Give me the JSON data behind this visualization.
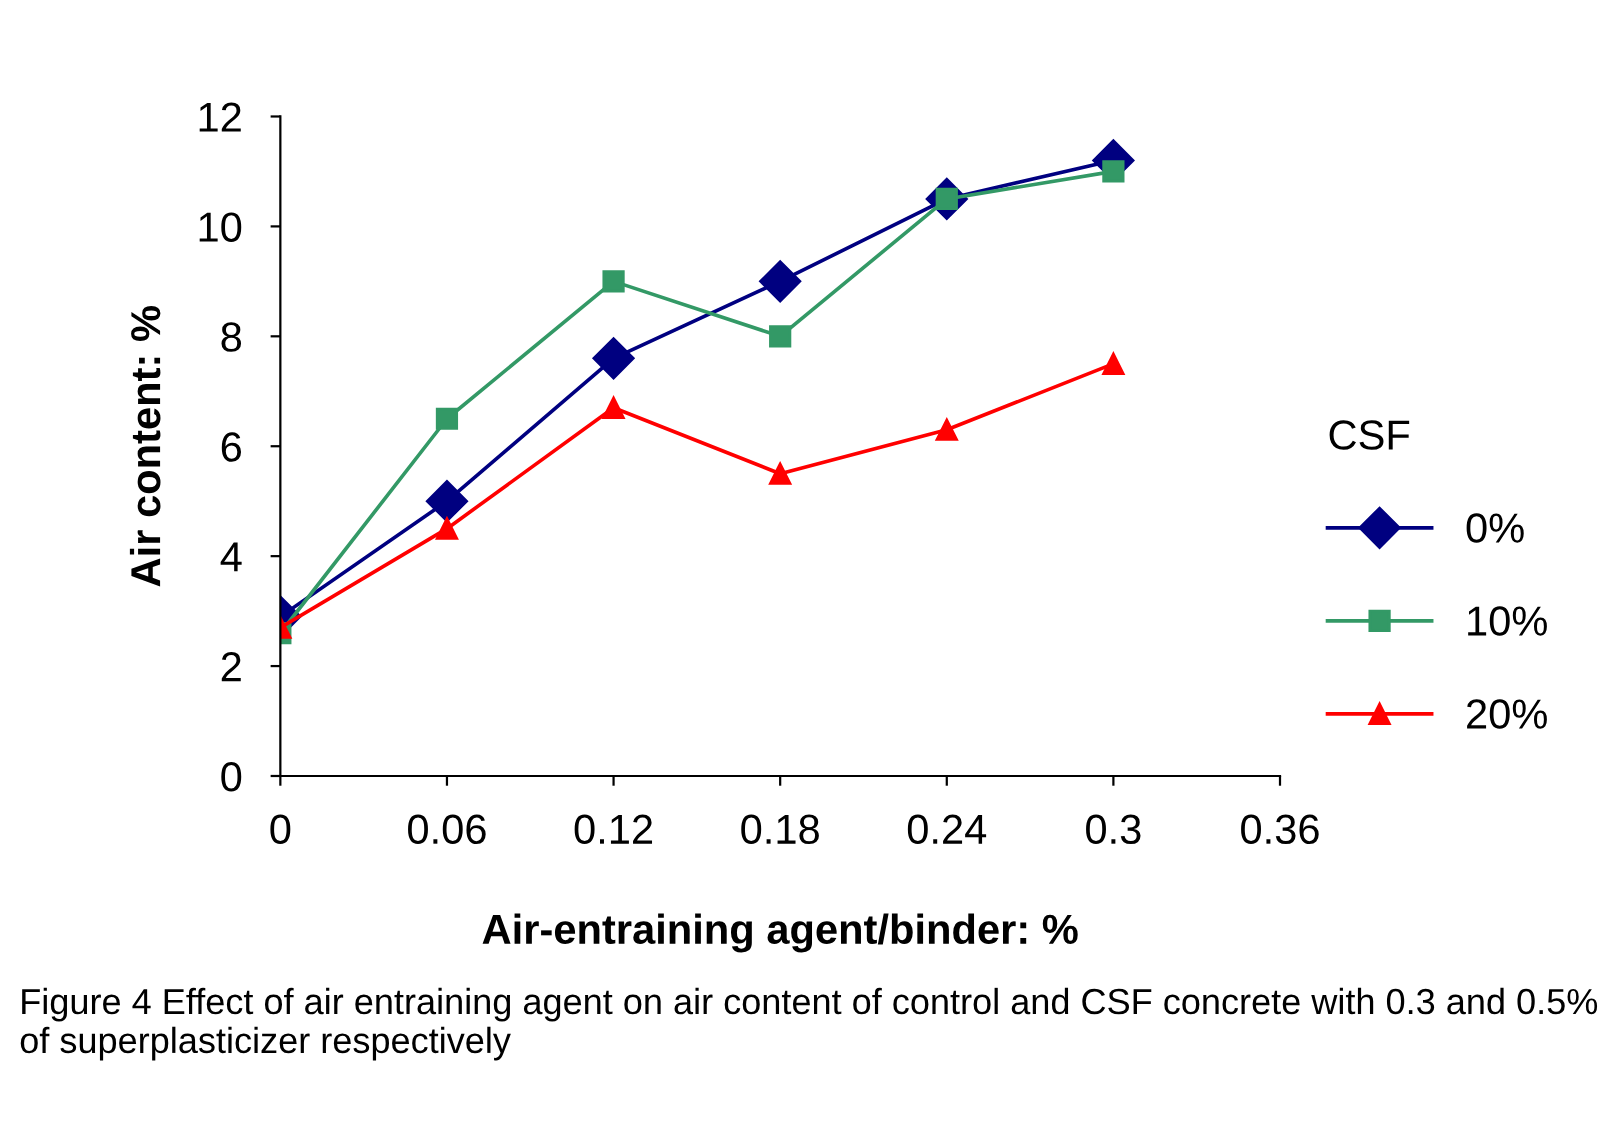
{
  "chart_data": {
    "type": "line",
    "xlabel": "Air-entraining agent/binder: %",
    "ylabel": "Air content: %",
    "x": [
      0,
      0.06,
      0.12,
      0.18,
      0.24,
      0.3
    ],
    "series": [
      {
        "name": "0%",
        "color": "#000080",
        "marker": "diamond",
        "values": [
          2.9,
          5.0,
          7.6,
          9.0,
          10.5,
          11.2
        ]
      },
      {
        "name": "10%",
        "color": "#339966",
        "marker": "square",
        "values": [
          2.6,
          6.5,
          9.0,
          8.0,
          10.5,
          11.0
        ]
      },
      {
        "name": "20%",
        "color": "#ff0000",
        "marker": "triangle",
        "values": [
          2.7,
          4.5,
          6.7,
          5.5,
          6.3,
          7.5
        ]
      }
    ],
    "xlim": [
      0,
      0.36
    ],
    "xticks": [
      0,
      0.06,
      0.12,
      0.18,
      0.24,
      0.3,
      0.36
    ],
    "ylim": [
      0,
      12
    ],
    "yticks": [
      0,
      2,
      4,
      6,
      8,
      10,
      12
    ],
    "grid": false,
    "legend": "right",
    "legend_title": "CSF",
    "annotations": [
      "Figure 4 Effect of air entraining agent on air content of control and CSF concrete with 0.3 and 0.5% of superplasticizer respectively"
    ]
  }
}
